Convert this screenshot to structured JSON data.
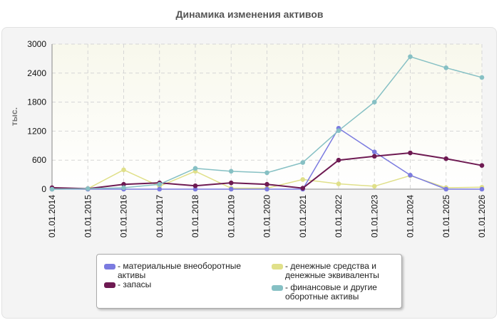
{
  "chart_data": {
    "type": "line",
    "title": "Динамика изменения активов",
    "ylabel": "тыс.",
    "xlabel": "",
    "ylim": [
      0,
      3000
    ],
    "yticks": [
      0,
      600,
      1200,
      1800,
      2400,
      3000
    ],
    "ytick_labels": [
      "0",
      "600",
      "1200",
      "1800",
      "2400",
      "3000"
    ],
    "categories": [
      "01.01.2014",
      "01.01.2015",
      "01.01.2016",
      "01.01.2017",
      "01.01.2018",
      "01.01.2019",
      "01.01.2020",
      "01.01.2021",
      "01.01.2022",
      "01.01.2023",
      "01.01.2024",
      "01.01.2025",
      "01.01.2026"
    ],
    "grid": true,
    "legend_position": "bottom",
    "series": [
      {
        "name": "- материальные внеоборотные активы",
        "color": "#7b7be0",
        "values": [
          0,
          0,
          0,
          0,
          0,
          0,
          0,
          0,
          1260,
          770,
          290,
          0,
          0
        ]
      },
      {
        "name": "- запасы",
        "color": "#6e1a52",
        "values": [
          30,
          10,
          100,
          130,
          70,
          130,
          100,
          20,
          600,
          680,
          750,
          630,
          490
        ]
      },
      {
        "name": "- денежные средства и денежные эквиваленты",
        "color": "#e0e08a",
        "values": [
          0,
          10,
          400,
          60,
          370,
          20,
          20,
          200,
          110,
          60,
          280,
          30,
          40
        ]
      },
      {
        "name": "- финансовые и другие оборотные активы",
        "color": "#86c0c4",
        "values": [
          0,
          10,
          30,
          100,
          430,
          370,
          340,
          550,
          1210,
          1800,
          2740,
          2510,
          2310
        ]
      }
    ]
  }
}
